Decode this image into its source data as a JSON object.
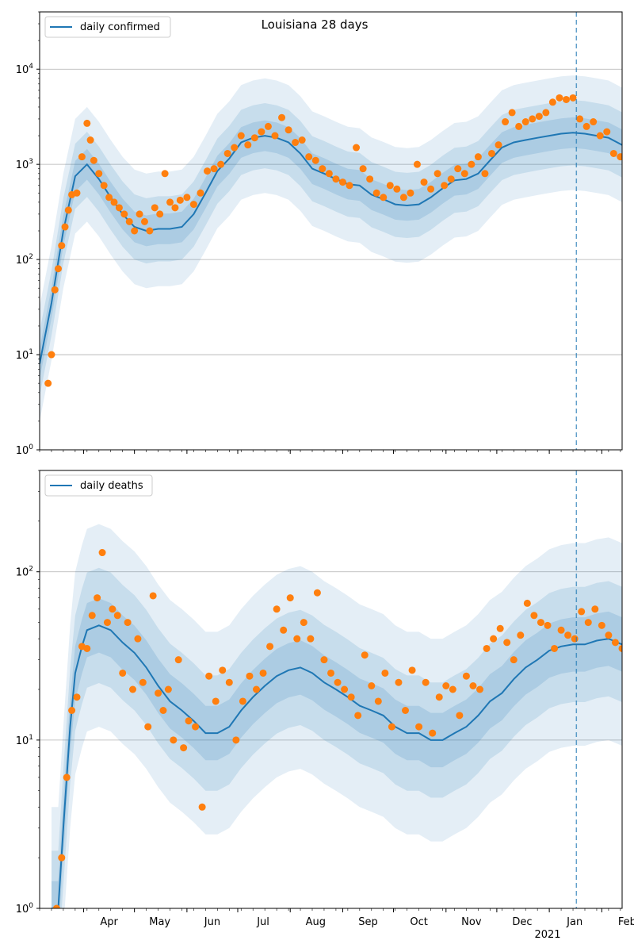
{
  "chart_data": [
    {
      "type": "line",
      "title": "Louisiana 28 days",
      "xlabel": "",
      "ylabel": "",
      "yscale": "log",
      "ylim": [
        1,
        40000
      ],
      "yticks": [
        1,
        10,
        100,
        1000,
        10000
      ],
      "ytick_labels": [
        [
          "10",
          "0"
        ],
        [
          "10",
          "1"
        ],
        [
          "10",
          "2"
        ],
        [
          "10",
          "3"
        ],
        [
          "10",
          "4"
        ]
      ],
      "grid": "horizontal major",
      "legend_placement": "top-left",
      "legend": [
        "daily confirmed"
      ],
      "forecast_start": "2021-01-17",
      "xlim": [
        "2020-03-06",
        "2021-02-13"
      ],
      "x_month_ticks": [
        {
          "date": "2020-04-01",
          "label": "Apr"
        },
        {
          "date": "2020-05-01",
          "label": "May"
        },
        {
          "date": "2020-06-01",
          "label": "Jun"
        },
        {
          "date": "2020-07-01",
          "label": "Jul"
        },
        {
          "date": "2020-08-01",
          "label": "Aug"
        },
        {
          "date": "2020-09-01",
          "label": "Sep"
        },
        {
          "date": "2020-10-01",
          "label": "Oct"
        },
        {
          "date": "2020-11-01",
          "label": "Nov"
        },
        {
          "date": "2020-12-01",
          "label": "Dec"
        },
        {
          "date": "2021-01-01",
          "label": "Jan"
        },
        {
          "date": "2021-02-01",
          "label": "Feb"
        }
      ],
      "year_label": "2021",
      "series": [
        {
          "name": "daily confirmed",
          "kind": "line",
          "x": [
            "2020-03-06",
            "2020-03-13",
            "2020-03-20",
            "2020-03-27",
            "2020-04-03",
            "2020-04-10",
            "2020-04-17",
            "2020-04-24",
            "2020-05-01",
            "2020-05-08",
            "2020-05-15",
            "2020-05-22",
            "2020-05-29",
            "2020-06-05",
            "2020-06-12",
            "2020-06-19",
            "2020-06-26",
            "2020-07-03",
            "2020-07-10",
            "2020-07-17",
            "2020-07-24",
            "2020-07-31",
            "2020-08-07",
            "2020-08-14",
            "2020-08-21",
            "2020-08-28",
            "2020-09-04",
            "2020-09-11",
            "2020-09-18",
            "2020-09-25",
            "2020-10-02",
            "2020-10-09",
            "2020-10-16",
            "2020-10-23",
            "2020-10-30",
            "2020-11-06",
            "2020-11-13",
            "2020-11-20",
            "2020-11-27",
            "2020-12-04",
            "2020-12-11",
            "2020-12-18",
            "2020-12-25",
            "2021-01-01",
            "2021-01-08",
            "2021-01-15",
            "2021-01-22",
            "2021-01-29",
            "2021-02-05",
            "2021-02-13"
          ],
          "y": [
            8,
            35,
            200,
            750,
            1000,
            700,
            450,
            300,
            220,
            200,
            210,
            210,
            220,
            300,
            500,
            850,
            1150,
            1700,
            1900,
            2000,
            1900,
            1700,
            1300,
            900,
            800,
            700,
            620,
            600,
            480,
            430,
            380,
            370,
            380,
            450,
            560,
            680,
            700,
            800,
            1100,
            1500,
            1700,
            1800,
            1900,
            2000,
            2100,
            2150,
            2100,
            2000,
            1900,
            1600
          ]
        },
        {
          "name": "",
          "kind": "scatter",
          "x": [
            "2020-03-11",
            "2020-03-13",
            "2020-03-15",
            "2020-03-17",
            "2020-03-19",
            "2020-03-21",
            "2020-03-23",
            "2020-03-25",
            "2020-03-28",
            "2020-03-31",
            "2020-04-03",
            "2020-04-05",
            "2020-04-07",
            "2020-04-10",
            "2020-04-13",
            "2020-04-16",
            "2020-04-19",
            "2020-04-22",
            "2020-04-25",
            "2020-04-28",
            "2020-05-01",
            "2020-05-04",
            "2020-05-07",
            "2020-05-10",
            "2020-05-13",
            "2020-05-16",
            "2020-05-19",
            "2020-05-22",
            "2020-05-25",
            "2020-05-28",
            "2020-06-01",
            "2020-06-05",
            "2020-06-09",
            "2020-06-13",
            "2020-06-17",
            "2020-06-21",
            "2020-06-25",
            "2020-06-29",
            "2020-07-03",
            "2020-07-07",
            "2020-07-11",
            "2020-07-15",
            "2020-07-19",
            "2020-07-23",
            "2020-07-27",
            "2020-07-31",
            "2020-08-04",
            "2020-08-08",
            "2020-08-12",
            "2020-08-16",
            "2020-08-20",
            "2020-08-24",
            "2020-08-28",
            "2020-09-01",
            "2020-09-05",
            "2020-09-09",
            "2020-09-13",
            "2020-09-17",
            "2020-09-21",
            "2020-09-25",
            "2020-09-29",
            "2020-10-03",
            "2020-10-07",
            "2020-10-11",
            "2020-10-15",
            "2020-10-19",
            "2020-10-23",
            "2020-10-27",
            "2020-10-31",
            "2020-11-04",
            "2020-11-08",
            "2020-11-12",
            "2020-11-16",
            "2020-11-20",
            "2020-11-24",
            "2020-11-28",
            "2020-12-02",
            "2020-12-06",
            "2020-12-10",
            "2020-12-14",
            "2020-12-18",
            "2020-12-22",
            "2020-12-26",
            "2020-12-30",
            "2021-01-03",
            "2021-01-07",
            "2021-01-11",
            "2021-01-15",
            "2021-01-19",
            "2021-01-23",
            "2021-01-27",
            "2021-01-31",
            "2021-02-04",
            "2021-02-08",
            "2021-02-12"
          ],
          "y": [
            5,
            10,
            48,
            80,
            140,
            220,
            330,
            480,
            500,
            1200,
            2700,
            1800,
            1100,
            800,
            600,
            450,
            400,
            350,
            300,
            250,
            200,
            300,
            250,
            200,
            350,
            300,
            800,
            400,
            350,
            420,
            450,
            380,
            500,
            850,
            900,
            1000,
            1300,
            1500,
            2000,
            1600,
            1900,
            2200,
            2500,
            2000,
            3100,
            2300,
            1700,
            1800,
            1200,
            1100,
            900,
            800,
            700,
            650,
            600,
            1500,
            900,
            700,
            500,
            450,
            600,
            550,
            450,
            500,
            1000,
            650,
            550,
            800,
            600,
            700,
            900,
            800,
            1000,
            1200,
            800,
            1300,
            1600,
            2800,
            3500,
            2500,
            2800,
            3000,
            3200,
            3500,
            4500,
            5000,
            4800,
            5000,
            3000,
            2500,
            2800,
            2000,
            2200,
            1300,
            1200
          ]
        }
      ]
    },
    {
      "type": "line",
      "title": "",
      "xlabel": "",
      "ylabel": "",
      "yscale": "log",
      "ylim": [
        1,
        400
      ],
      "yticks": [
        1,
        10,
        100
      ],
      "ytick_labels": [
        [
          "10",
          "0"
        ],
        [
          "10",
          "1"
        ],
        [
          "10",
          "2"
        ]
      ],
      "grid": "horizontal major",
      "legend_placement": "top-left",
      "legend": [
        "daily deaths"
      ],
      "forecast_start": "2021-01-17",
      "xlim": [
        "2020-03-06",
        "2021-02-13"
      ],
      "x_month_ticks": [
        {
          "date": "2020-04-01",
          "label": "Apr"
        },
        {
          "date": "2020-05-01",
          "label": "May"
        },
        {
          "date": "2020-06-01",
          "label": "Jun"
        },
        {
          "date": "2020-07-01",
          "label": "Jul"
        },
        {
          "date": "2020-08-01",
          "label": "Aug"
        },
        {
          "date": "2020-09-01",
          "label": "Sep"
        },
        {
          "date": "2020-10-01",
          "label": "Oct"
        },
        {
          "date": "2020-11-01",
          "label": "Nov"
        },
        {
          "date": "2020-12-01",
          "label": "Dec"
        },
        {
          "date": "2021-01-01",
          "label": "Jan"
        },
        {
          "date": "2021-02-01",
          "label": "Feb"
        }
      ],
      "year_label": "2021",
      "series": [
        {
          "name": "daily deaths",
          "kind": "line",
          "x": [
            "2020-03-13",
            "2020-03-17",
            "2020-03-20",
            "2020-03-24",
            "2020-03-27",
            "2020-03-31",
            "2020-04-03",
            "2020-04-10",
            "2020-04-17",
            "2020-04-24",
            "2020-05-01",
            "2020-05-08",
            "2020-05-15",
            "2020-05-22",
            "2020-05-29",
            "2020-06-05",
            "2020-06-12",
            "2020-06-19",
            "2020-06-26",
            "2020-07-03",
            "2020-07-10",
            "2020-07-17",
            "2020-07-24",
            "2020-07-31",
            "2020-08-07",
            "2020-08-14",
            "2020-08-21",
            "2020-08-28",
            "2020-09-04",
            "2020-09-11",
            "2020-09-18",
            "2020-09-25",
            "2020-10-02",
            "2020-10-09",
            "2020-10-16",
            "2020-10-23",
            "2020-10-30",
            "2020-11-06",
            "2020-11-13",
            "2020-11-20",
            "2020-11-27",
            "2020-12-04",
            "2020-12-11",
            "2020-12-18",
            "2020-12-25",
            "2021-01-01",
            "2021-01-08",
            "2021-01-15",
            "2021-01-22",
            "2021-01-29",
            "2021-02-05",
            "2021-02-13"
          ],
          "y": [
            1,
            1,
            3,
            12,
            25,
            36,
            45,
            48,
            45,
            38,
            33,
            27,
            21,
            17,
            15,
            13,
            11,
            11,
            12,
            15,
            18,
            21,
            24,
            26,
            27,
            25,
            22,
            20,
            18,
            16,
            15,
            14,
            12,
            11,
            11,
            10,
            10,
            11,
            12,
            14,
            17,
            19,
            23,
            27,
            30,
            34,
            36,
            37,
            37,
            39,
            40,
            37
          ]
        },
        {
          "name": "",
          "kind": "scatter",
          "x": [
            "2020-03-16",
            "2020-03-19",
            "2020-03-22",
            "2020-03-25",
            "2020-03-28",
            "2020-03-31",
            "2020-04-03",
            "2020-04-06",
            "2020-04-09",
            "2020-04-12",
            "2020-04-15",
            "2020-04-18",
            "2020-04-21",
            "2020-04-24",
            "2020-04-27",
            "2020-04-30",
            "2020-05-03",
            "2020-05-06",
            "2020-05-09",
            "2020-05-12",
            "2020-05-15",
            "2020-05-18",
            "2020-05-21",
            "2020-05-24",
            "2020-05-27",
            "2020-05-30",
            "2020-06-02",
            "2020-06-06",
            "2020-06-10",
            "2020-06-14",
            "2020-06-18",
            "2020-06-22",
            "2020-06-26",
            "2020-06-30",
            "2020-07-04",
            "2020-07-08",
            "2020-07-12",
            "2020-07-16",
            "2020-07-20",
            "2020-07-24",
            "2020-07-28",
            "2020-08-01",
            "2020-08-05",
            "2020-08-09",
            "2020-08-13",
            "2020-08-17",
            "2020-08-21",
            "2020-08-25",
            "2020-08-29",
            "2020-09-02",
            "2020-09-06",
            "2020-09-10",
            "2020-09-14",
            "2020-09-18",
            "2020-09-22",
            "2020-09-26",
            "2020-09-30",
            "2020-10-04",
            "2020-10-08",
            "2020-10-12",
            "2020-10-16",
            "2020-10-20",
            "2020-10-24",
            "2020-10-28",
            "2020-11-01",
            "2020-11-05",
            "2020-11-09",
            "2020-11-13",
            "2020-11-17",
            "2020-11-21",
            "2020-11-25",
            "2020-11-29",
            "2020-12-03",
            "2020-12-07",
            "2020-12-11",
            "2020-12-15",
            "2020-12-19",
            "2020-12-23",
            "2020-12-27",
            "2020-12-31",
            "2021-01-04",
            "2021-01-08",
            "2021-01-12",
            "2021-01-16",
            "2021-01-20",
            "2021-01-24",
            "2021-01-28",
            "2021-02-01",
            "2021-02-05",
            "2021-02-09",
            "2021-02-13"
          ],
          "y": [
            1,
            2,
            6,
            15,
            18,
            36,
            35,
            55,
            70,
            130,
            50,
            60,
            55,
            25,
            50,
            20,
            40,
            22,
            12,
            72,
            19,
            15,
            20,
            10,
            30,
            9,
            13,
            12,
            4,
            24,
            17,
            26,
            22,
            10,
            17,
            24,
            20,
            25,
            36,
            60,
            45,
            70,
            40,
            50,
            40,
            75,
            30,
            25,
            22,
            20,
            18,
            14,
            32,
            21,
            17,
            25,
            12,
            22,
            15,
            26,
            12,
            22,
            11,
            18,
            21,
            20,
            14,
            24,
            21,
            20,
            35,
            40,
            46,
            38,
            30,
            42,
            65,
            55,
            50,
            48,
            35,
            45,
            42,
            40,
            58,
            50,
            60,
            48,
            42,
            38,
            35
          ]
        }
      ]
    }
  ]
}
